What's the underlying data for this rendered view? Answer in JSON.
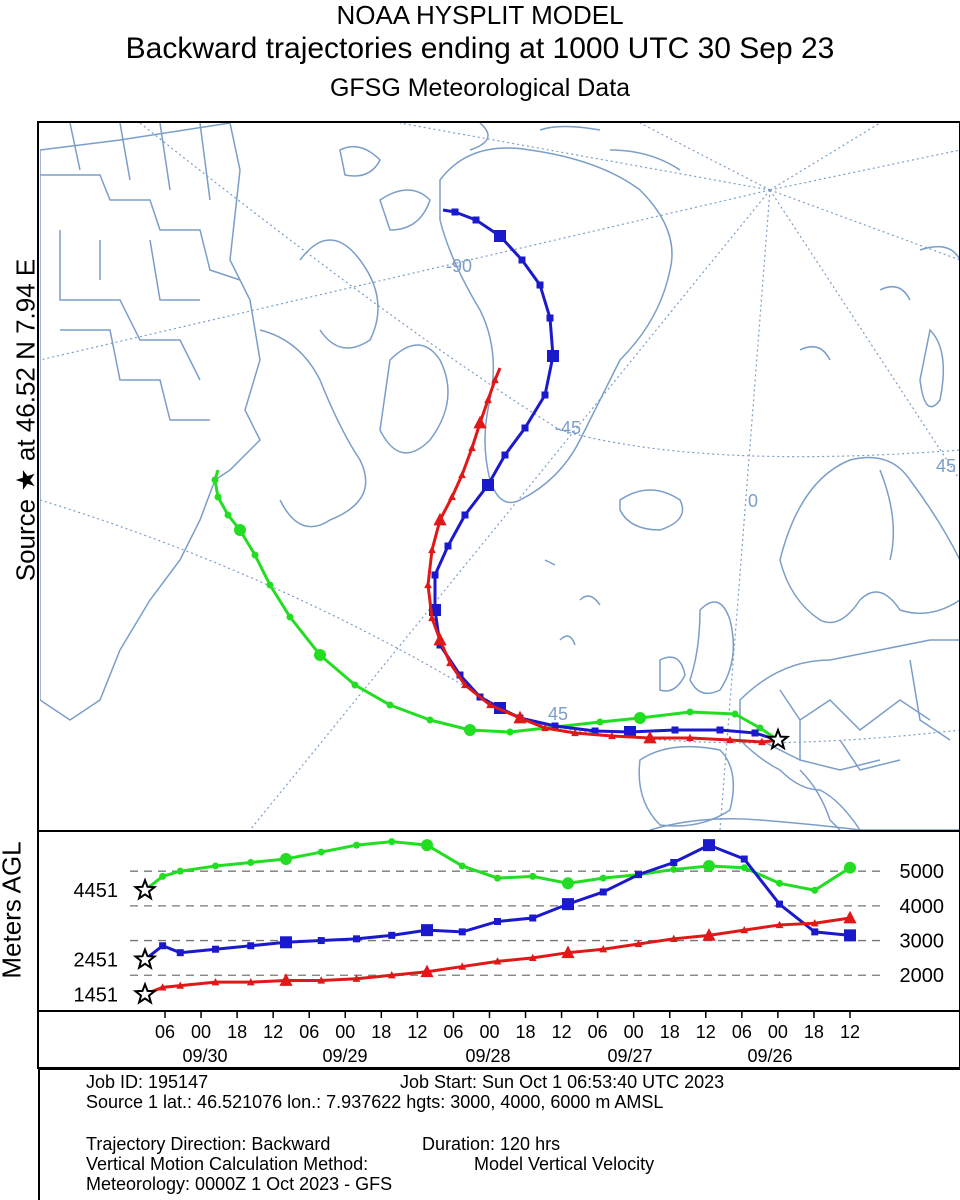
{
  "header": {
    "title": "NOAA HYSPLIT MODEL",
    "subtitle": "Backward trajectories ending at 1000 UTC 30 Sep 23",
    "meteo": "GFSG Meteorological Data"
  },
  "side_label": {
    "prefix": "Source",
    "star": "★",
    "text": "at   46.52 N   7.94 E"
  },
  "chart_data": [
    {
      "type": "line",
      "title": "Backward trajectories ending at 1000 UTC 30 Sep 23",
      "map_labels": [
        "-90",
        "-45",
        "0",
        "45",
        "45"
      ],
      "series": [
        {
          "name": "",
          "color": "#22dd22",
          "start_height_m_agl": 4451
        },
        {
          "name": "",
          "color": "#1a1acc",
          "start_height_m_agl": 2451
        },
        {
          "name": "",
          "color": "#e01818",
          "start_height_m_agl": 1451
        }
      ]
    },
    {
      "type": "line",
      "ylabel": "Meters AGL",
      "x_ticks": [
        "06",
        "00",
        "18",
        "12",
        "06",
        "00",
        "18",
        "12",
        "06",
        "00",
        "18",
        "12",
        "06",
        "00",
        "18",
        "12",
        "06",
        "00",
        "18",
        "12"
      ],
      "date_labels": [
        "09/30",
        "09/29",
        "09/28",
        "09/27",
        "09/26"
      ],
      "y_ticks_right": [
        "5000",
        "4000",
        "3000",
        "2000"
      ],
      "y_ticks_left": [
        "4451",
        "2451",
        "1451"
      ],
      "ylim": [
        1200,
        6100
      ],
      "series": [
        {
          "name": "",
          "color": "#22dd22",
          "hours": [
            0,
            3,
            6,
            12,
            18,
            24,
            30,
            36,
            42,
            48,
            54,
            60,
            66,
            72,
            78,
            84,
            90,
            96,
            102,
            108,
            114,
            120
          ],
          "values": [
            4451,
            4850,
            5000,
            5150,
            5250,
            5350,
            5550,
            5750,
            5850,
            5750,
            5150,
            4800,
            4850,
            4650,
            4800,
            4900,
            5050,
            5150,
            5100,
            4650,
            4450,
            5100
          ]
        },
        {
          "name": "",
          "color": "#1a1acc",
          "hours": [
            0,
            3,
            6,
            12,
            18,
            24,
            30,
            36,
            42,
            48,
            54,
            60,
            66,
            72,
            78,
            84,
            90,
            96,
            102,
            108,
            114,
            120
          ],
          "values": [
            2451,
            2850,
            2650,
            2750,
            2850,
            2950,
            3000,
            3050,
            3150,
            3300,
            3250,
            3550,
            3650,
            4050,
            4400,
            4900,
            5250,
            5750,
            5350,
            4050,
            3250,
            3150
          ]
        },
        {
          "name": "",
          "color": "#e01818",
          "hours": [
            0,
            3,
            6,
            12,
            18,
            24,
            30,
            36,
            42,
            48,
            54,
            60,
            66,
            72,
            78,
            84,
            90,
            96,
            102,
            108,
            114,
            120
          ],
          "values": [
            1451,
            1650,
            1700,
            1800,
            1800,
            1850,
            1850,
            1900,
            2000,
            2100,
            2250,
            2400,
            2500,
            2650,
            2750,
            2900,
            3050,
            3150,
            3300,
            3450,
            3500,
            3650
          ]
        }
      ]
    }
  ],
  "info": {
    "job_id": "Job ID: 195147",
    "job_start": "Job Start: Sun Oct  1 06:53:40 UTC 2023",
    "source": "Source 1 lat.: 46.521076  lon.: 7.937622  hgts: 3000, 4000, 6000 m AMSL",
    "direction": "Trajectory Direction: Backward",
    "duration": "Duration: 120 hrs",
    "vertical_label": "Vertical Motion Calculation Method:",
    "vertical_value": "Model Vertical Velocity",
    "meteorology": "Meteorology: 0000Z 1 Oct 2023 - GFS"
  }
}
